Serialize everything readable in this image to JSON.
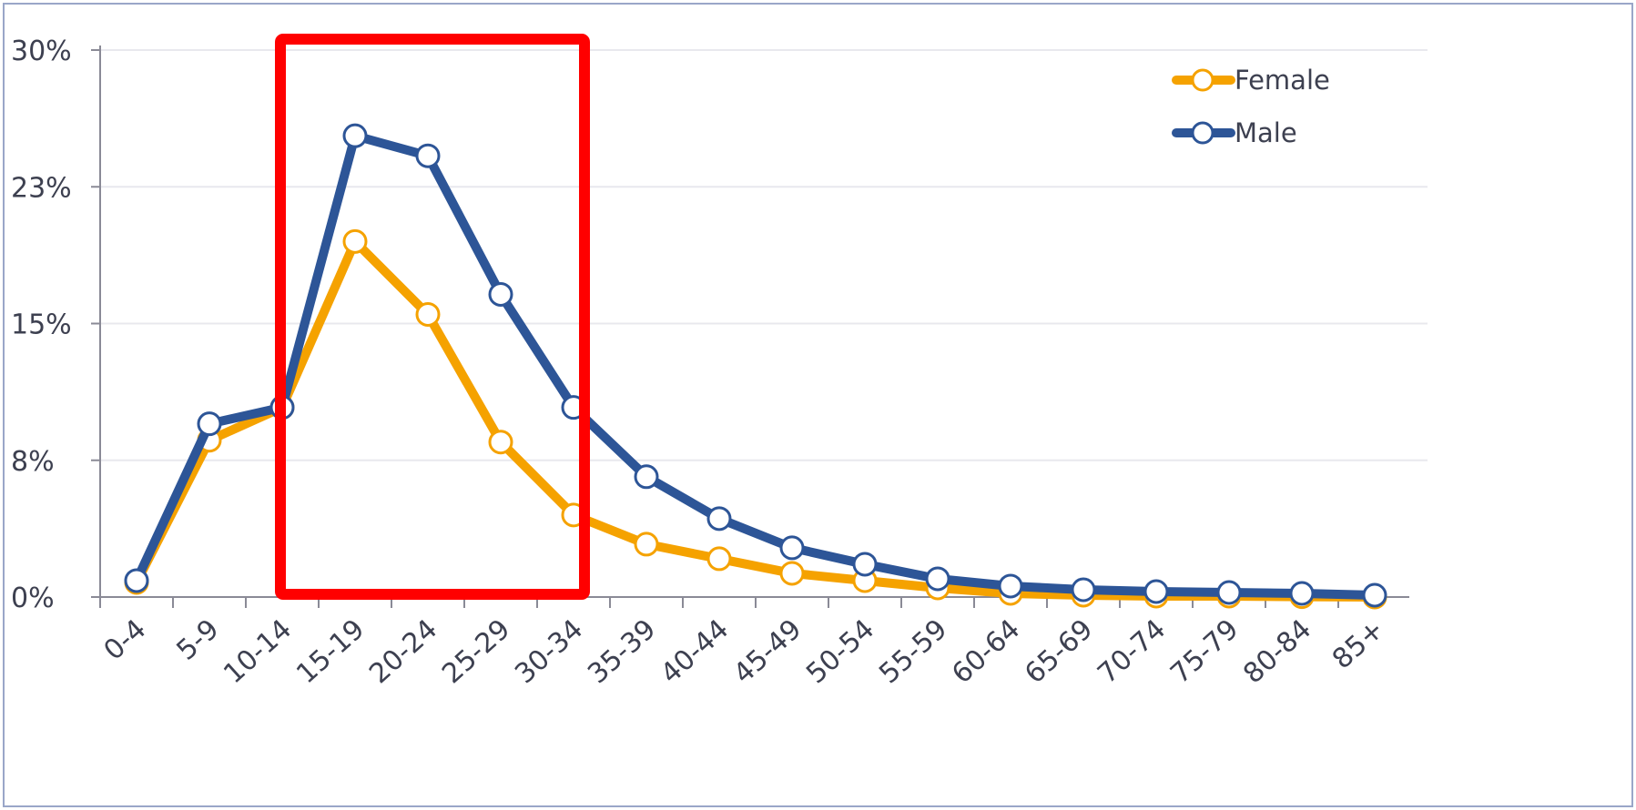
{
  "colors": {
    "female": "#f5a200",
    "male": "#2d5597",
    "highlight_box": "#ff0000",
    "grid": "#e8e8ee",
    "axis": "#8a8a96",
    "frame": "#9aa6c8",
    "marker_fill": "#ffffff"
  },
  "chart_data": {
    "type": "line",
    "title": "",
    "xlabel": "",
    "ylabel": "",
    "categories": [
      "0-4",
      "5-9",
      "10-14",
      "15-19",
      "20-24",
      "25-29",
      "30-34",
      "35-39",
      "40-44",
      "45-49",
      "50-54",
      "55-59",
      "60-64",
      "65-69",
      "70-74",
      "75-79",
      "80-84",
      "85+"
    ],
    "y_ticks": [
      "0%",
      "8%",
      "15%",
      "23%",
      "30%"
    ],
    "ylim": [
      0,
      30
    ],
    "grid": true,
    "legend_position": "top-right",
    "series": [
      {
        "name": "Female",
        "color": "#f5a200",
        "values": [
          0.8,
          8.6,
          10.4,
          19.5,
          15.5,
          8.5,
          4.5,
          2.9,
          2.1,
          1.3,
          0.9,
          0.5,
          0.2,
          0.1,
          0.05,
          0.05,
          0.02,
          0.0
        ]
      },
      {
        "name": "Male",
        "color": "#2d5597",
        "values": [
          0.9,
          9.5,
          10.4,
          25.3,
          24.2,
          16.6,
          10.4,
          6.6,
          4.3,
          2.7,
          1.8,
          1.0,
          0.6,
          0.4,
          0.3,
          0.25,
          0.2,
          0.1
        ]
      }
    ],
    "annotations": [
      {
        "type": "highlight-box",
        "from_category": "15-19",
        "to_category": "30-34",
        "color": "#ff0000"
      }
    ]
  }
}
